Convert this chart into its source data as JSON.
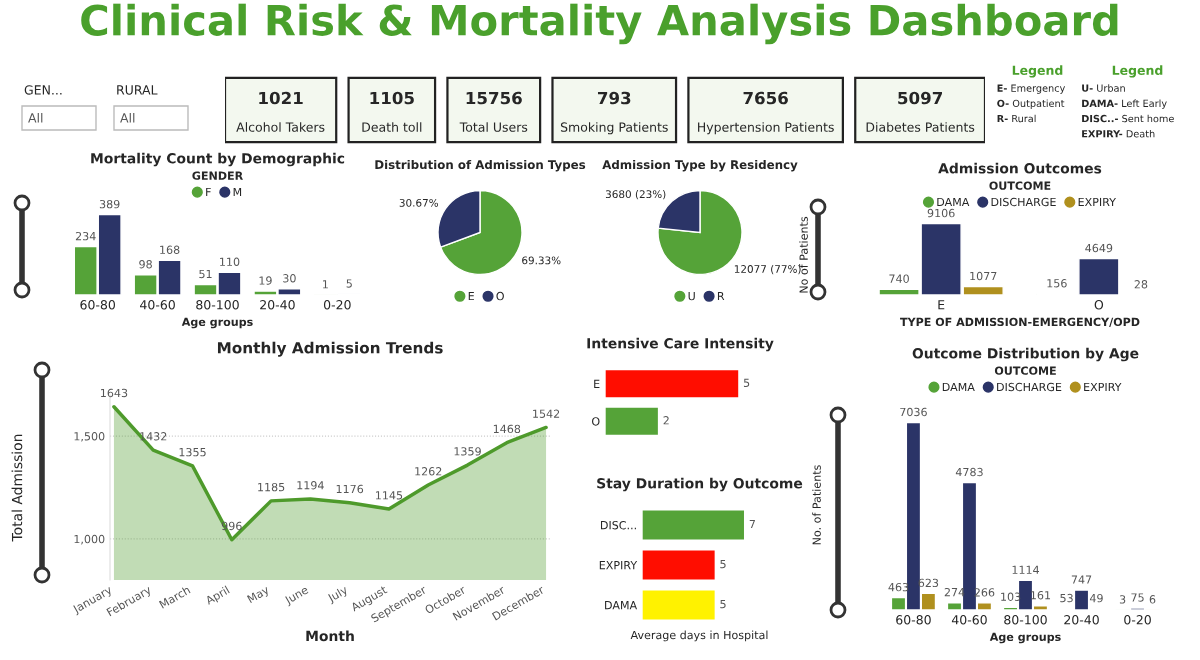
{
  "chart_data": [
    {
      "type": "other",
      "title": "Clinical Risk & Mortality Analysis Dashboard",
      "annotations": [
        "GEN...",
        "All",
        "RURAL",
        "All"
      ]
    },
    {
      "type": "other",
      "data_labels": true,
      "categories": [
        "Alcohol Takers",
        "Death toll",
        "Total Users",
        "Smoking Patients",
        "Hypertension Patients",
        "Diabetes Patients"
      ],
      "values": [
        1021,
        1105,
        15756,
        793,
        7656,
        5097
      ]
    },
    {
      "type": "other",
      "title": "Legend",
      "annotations": [
        "E- Emergency",
        "O- Outpatient",
        "R- Rural"
      ]
    },
    {
      "type": "other",
      "title": "Legend",
      "annotations": [
        "U- Urban",
        "DAMA- Left Early",
        "DISC..- Sent home",
        "EXPIRY- Death"
      ]
    },
    {
      "type": "bar",
      "title": "Mortality Count by Demographic",
      "xlabel": "Age groups",
      "legend_title": "GENDER",
      "legend": "top",
      "tick_labels": "x",
      "data_labels": true,
      "categories": [
        "60-80",
        "40-60",
        "80-100",
        "20-40",
        "0-20"
      ],
      "series": [
        {
          "name": "F",
          "color": "#55a338",
          "values": [
            234,
            98,
            51,
            19,
            1
          ]
        },
        {
          "name": "M",
          "color": "#2b3467",
          "values": [
            389,
            168,
            110,
            30,
            5
          ]
        }
      ]
    },
    {
      "type": "pie",
      "title": "Distribution of Admission Types",
      "legend": "bottom",
      "categories": [
        "E",
        "O"
      ],
      "values": [
        69.33,
        30.67
      ],
      "colors": [
        "#55a338",
        "#2b3467"
      ],
      "value_labels": [
        "69.33%",
        "30.67%"
      ]
    },
    {
      "type": "pie",
      "title": "Admission Type by Residency",
      "legend": "bottom",
      "categories": [
        "U",
        "R"
      ],
      "values": [
        12077,
        3680
      ],
      "colors": [
        "#55a338",
        "#2b3467"
      ],
      "value_labels": [
        "12077 (77%)",
        "3680 (23%)"
      ]
    },
    {
      "type": "bar",
      "title": "Admission Outcomes",
      "xlabel": "TYPE OF ADMISSION-EMERGENCY/OPD",
      "ylabel": "No of Patients",
      "legend_title": "OUTCOME",
      "legend": "top",
      "tick_labels": "x",
      "data_labels": true,
      "categories": [
        "E",
        "O"
      ],
      "series": [
        {
          "name": "DAMA",
          "color": "#55a338",
          "values": [
            740,
            156
          ]
        },
        {
          "name": "DISCHARGE",
          "color": "#2b3467",
          "values": [
            9106,
            4649
          ]
        },
        {
          "name": "EXPIRY",
          "color": "#b0901e",
          "values": [
            1077,
            28
          ]
        }
      ]
    },
    {
      "type": "area",
      "title": "Monthly Admission Trends",
      "xlabel": "Month",
      "ylabel": "Total Admission",
      "grid": "y",
      "data_labels": true,
      "categories": [
        "January",
        "February",
        "March",
        "April",
        "May",
        "June",
        "July",
        "August",
        "September",
        "October",
        "November",
        "December"
      ],
      "ylim": [
        800,
        1700
      ],
      "yticks": [
        {
          "value": 1000,
          "label": "1,000"
        },
        {
          "value": 1500,
          "label": "1,500"
        }
      ],
      "series": [
        {
          "color": "#4e9a2b",
          "values": [
            1643,
            1432,
            1355,
            996,
            1185,
            1194,
            1176,
            1145,
            1262,
            1359,
            1468,
            1542
          ]
        }
      ]
    },
    {
      "type": "bar",
      "title": "Intensive Care Intensity",
      "orientation": "horizontal",
      "tick_labels": "y",
      "data_labels": true,
      "categories": [
        "E",
        "O"
      ],
      "values": [
        5,
        2
      ],
      "colors": [
        "#ff0d00",
        "#55a338"
      ]
    },
    {
      "type": "bar",
      "title": "Stay Duration by Outcome",
      "xlabel": "Average days in Hospital",
      "orientation": "horizontal",
      "tick_labels": "y",
      "data_labels": true,
      "categories": [
        "DISC...",
        "EXPIRY",
        "DAMA"
      ],
      "values": [
        7,
        5,
        5
      ],
      "colors": [
        "#55a338",
        "#ff0d00",
        "#fff200"
      ]
    },
    {
      "type": "bar",
      "title": "Outcome Distribution by Age",
      "xlabel": "Age groups",
      "ylabel": "No. of Patients",
      "legend_title": "OUTCOME",
      "legend": "top",
      "tick_labels": "x",
      "data_labels": true,
      "categories": [
        "60-80",
        "40-60",
        "80-100",
        "20-40",
        "0-20"
      ],
      "series": [
        {
          "name": "DAMA",
          "color": "#55a338",
          "values": [
            463,
            274,
            103,
            53,
            3
          ]
        },
        {
          "name": "DISCHARGE",
          "color": "#2b3467",
          "values": [
            7036,
            4783,
            1114,
            747,
            75
          ]
        },
        {
          "name": "EXPIRY",
          "color": "#b0901e",
          "values": [
            623,
            266,
            161,
            49,
            6
          ]
        }
      ]
    }
  ]
}
